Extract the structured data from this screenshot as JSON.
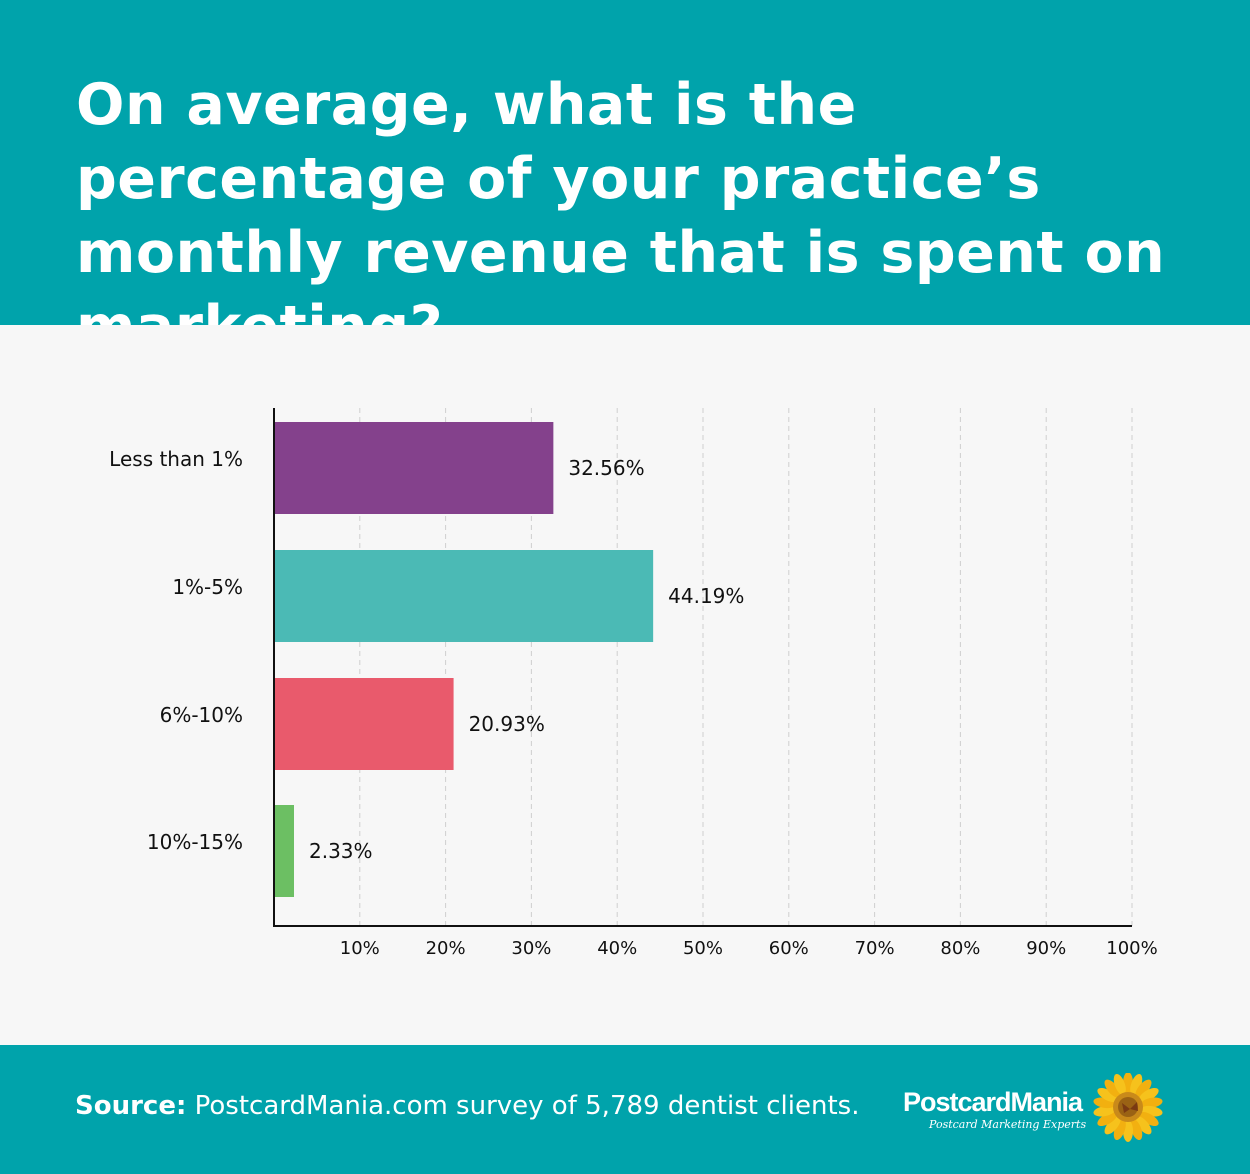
{
  "header": {
    "title": "On average, what is the percentage of your practice’s monthly revenue that is spent on marketing?"
  },
  "chart_data": {
    "type": "bar",
    "orientation": "horizontal",
    "title": "On average, what is the percentage of your practice’s monthly revenue that is spent on marketing?",
    "categories": [
      "Less than 1%",
      "1%-5%",
      "6%-10%",
      "10%-15%"
    ],
    "values": [
      32.56,
      44.19,
      20.93,
      2.33
    ],
    "data_labels": [
      "32.56%",
      "44.19%",
      "20.93%",
      "2.33%"
    ],
    "colors": [
      "#84418c",
      "#4bbab5",
      "#e95a6c",
      "#6cbf63"
    ],
    "xlim": [
      0,
      100
    ],
    "xticks": [
      10,
      20,
      30,
      40,
      50,
      60,
      70,
      80,
      90,
      100
    ],
    "xtick_labels": [
      "10%",
      "20%",
      "30%",
      "40%",
      "50%",
      "60%",
      "70%",
      "80%",
      "90%",
      "100%"
    ],
    "grid": "vertical dashed",
    "xlabel": "",
    "ylabel": ""
  },
  "footer": {
    "source_label": "Source:",
    "source_text": " PostcardMania.com survey of 5,789 dentist clients.",
    "logo_name": "PostcardMania",
    "logo_tagline": "Postcard Marketing Experts"
  },
  "colors": {
    "brand_teal": "#00a3ab",
    "background": "#f7f7f7"
  }
}
